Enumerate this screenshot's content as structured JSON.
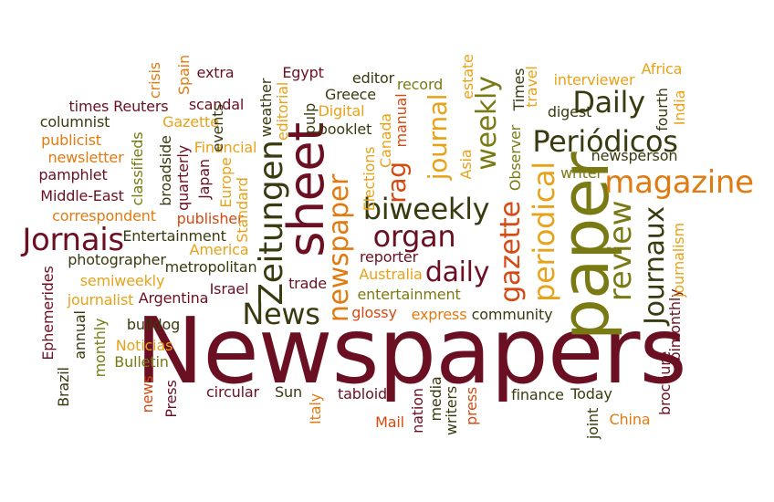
{
  "colors": {
    "maroon": "#6b0f22",
    "dark_olive": "#3a3a10",
    "orange": "#e07b12",
    "yellow_orange": "#e8a21a",
    "olive": "#7a7a14",
    "red_orange": "#d44a12"
  },
  "words": {
    "newspapers": "Newspapers",
    "paper": "paper",
    "sheet": "sheet",
    "magazine": "magazine",
    "periodicos": "Periódicos",
    "biweekly": "biweekly",
    "jornais": "Jornais",
    "zeitungen": "Zeitungen",
    "newspaper": "newspaper",
    "organ": "organ",
    "daily_cap": "Daily",
    "daily": "daily",
    "news": "News",
    "gazette": "gazette",
    "periodical": "periodical",
    "review": "review",
    "journaux": "Journaux",
    "journal": "journal",
    "weekly": "weekly",
    "rag": "rag",
    "times_reuters": "times Reuters",
    "scandal": "scandal",
    "columnist": "columnist",
    "publicist": "publicist",
    "newsletter": "newsletter",
    "pamphlet": "pamphlet",
    "middle_east": "Middle-East",
    "correspondent": "correspondent",
    "gazette_cap": "Gazette",
    "financial": "Financial",
    "publisher": "publisher",
    "entertainment_cap": "Entertainment",
    "america": "America",
    "photographer": "photographer",
    "semiweekly": "semiweekly",
    "journalist": "journalist",
    "argentina": "Argentina",
    "metropolitan": "metropolitan",
    "israel": "Israel",
    "trade": "trade",
    "bulldog": "bulldog",
    "noticias": "Noticias",
    "bulletin": "Bulletin",
    "circular": "circular",
    "sun": "Sun",
    "tabloid": "tabloid",
    "mail": "Mail",
    "crisis": "crisis",
    "spain": "Spain",
    "extra": "extra",
    "egypt": "Egypt",
    "editor": "editor",
    "record": "record",
    "greece": "Greece",
    "digital": "Digital",
    "booklet": "booklet",
    "estate": "estate",
    "travel": "travel",
    "times_cap": "Times",
    "interviewer": "interviewer",
    "africa": "Africa",
    "digest": "digest",
    "fourth": "fourth",
    "india": "India",
    "newsperson": "newsperson",
    "writer": "writer",
    "reporter": "reporter",
    "australia": "Australia",
    "entertainment": "entertainment",
    "glossy": "glossy",
    "express": "express",
    "community": "community",
    "finance": "finance",
    "today": "Today",
    "china": "China",
    "classifieds": "classifieds",
    "broadside": "broadside",
    "quarterly": "quarterly",
    "japan": "Japan",
    "events": "events",
    "europe": "Europe",
    "standard": "Standard",
    "weather": "weather",
    "editorial": "editorial",
    "pulp": "pulp",
    "canada": "Canada",
    "elections": "Elections",
    "manual": "manual",
    "asia": "Asia",
    "observer": "Observer",
    "ephemerides": "Ephemerides",
    "annual": "annual",
    "monthly": "monthly",
    "brazil": "Brazil",
    "news_lower": "news",
    "press_cap": "Press",
    "italy": "Italy",
    "nation": "nation",
    "media": "media",
    "writers": "writers",
    "press": "press",
    "joint": "joint",
    "brochure": "brochure",
    "bimonthly": "bimonthly",
    "journalism": "journalism"
  }
}
